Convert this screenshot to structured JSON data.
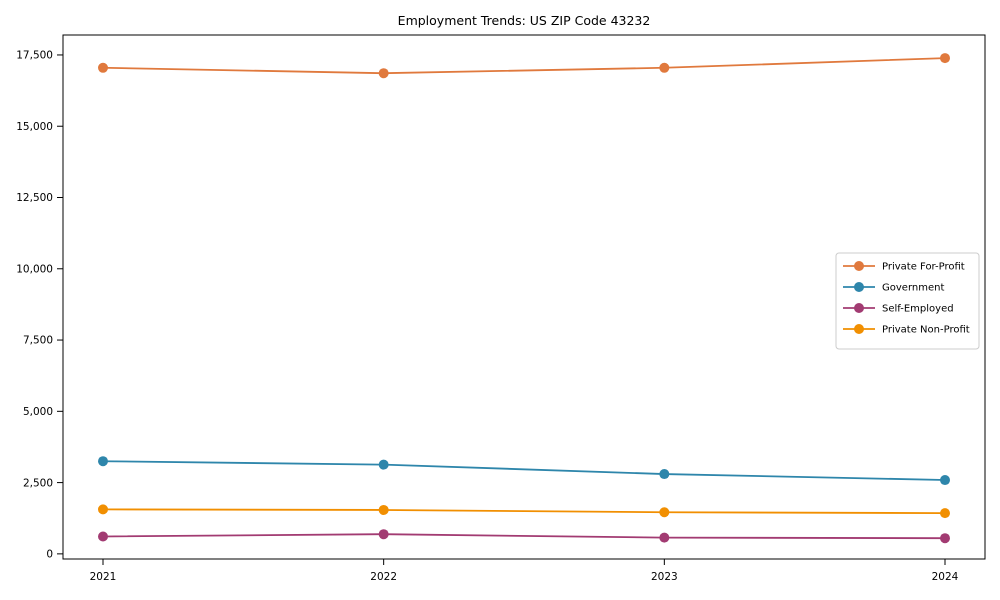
{
  "title": "Employment Trends: US ZIP Code 43232",
  "chart_data": {
    "type": "line",
    "title": "Employment Trends: US ZIP Code 43232",
    "xlabel": "",
    "ylabel": "",
    "x": [
      2021,
      2022,
      2023,
      2024
    ],
    "x_tick_labels": [
      "2021",
      "2022",
      "2023",
      "2024"
    ],
    "series": [
      {
        "name": "Private For-Profit",
        "color": "#E0793D",
        "values": [
          17050,
          16860,
          17050,
          17390
        ]
      },
      {
        "name": "Government",
        "color": "#2E86AB",
        "values": [
          3250,
          3130,
          2800,
          2590
        ]
      },
      {
        "name": "Self-Employed",
        "color": "#A23B72",
        "values": [
          610,
          690,
          570,
          550
        ]
      },
      {
        "name": "Private Non-Profit",
        "color": "#F18F01",
        "values": [
          1560,
          1540,
          1460,
          1430
        ]
      }
    ],
    "y_ticks": [
      0,
      2500,
      5000,
      7500,
      10000,
      12500,
      15000,
      17500
    ],
    "y_tick_labels": [
      "0",
      "2,500",
      "5,000",
      "7,500",
      "10,000",
      "12,500",
      "15,000",
      "17,500"
    ],
    "ylim": [
      -180,
      18200
    ],
    "grid": false,
    "legend_position": "center right",
    "marker": "circle",
    "line_width": 1.8,
    "marker_radius": 5,
    "axis_color": "#000000",
    "legend_border_color": "#cccccc",
    "background_color": "#ffffff"
  }
}
